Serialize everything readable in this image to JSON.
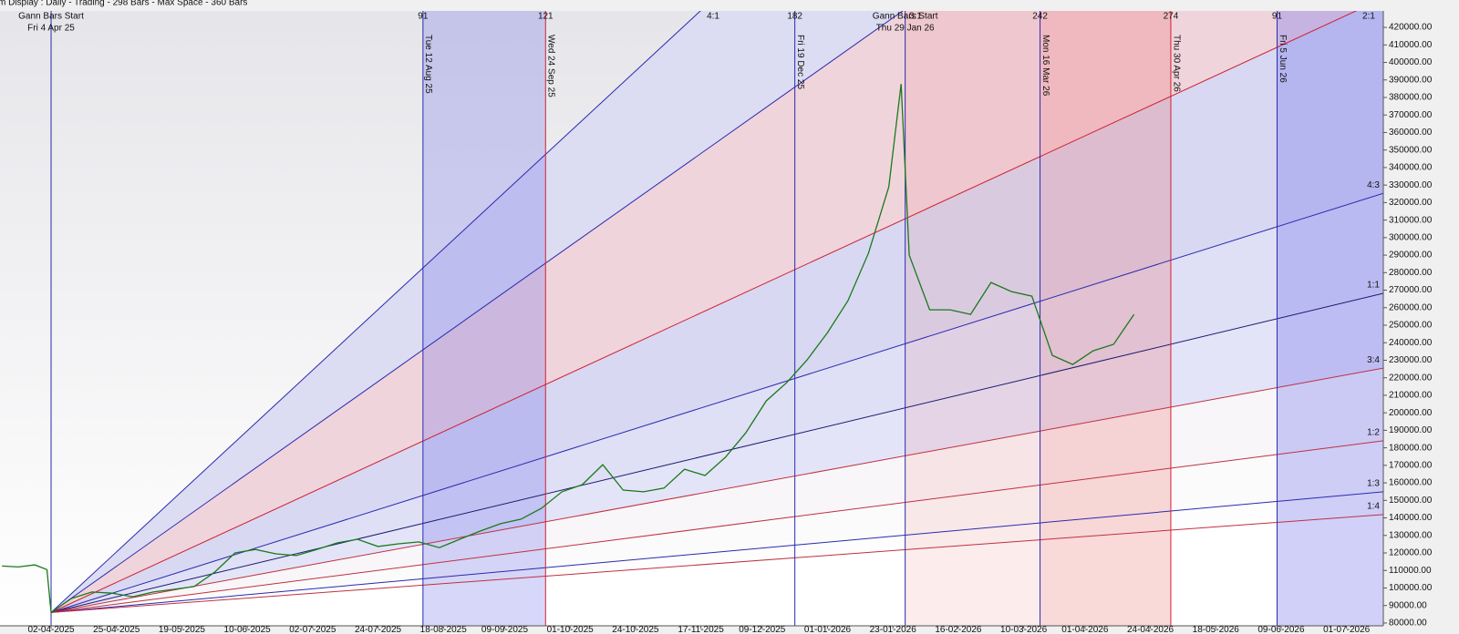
{
  "chart_data": {
    "type": "gann",
    "header": "m Display : Daily - Trading - 298 Bars - Max Space - 360 Bars",
    "xlim": [
      -12.5,
      326
    ],
    "ylim": [
      78400,
      429400
    ],
    "xticks": [
      {
        "value": 0,
        "label": "02-04-2025"
      },
      {
        "value": 16,
        "label": "25-04-2025"
      },
      {
        "value": 32,
        "label": "19-05-2025"
      },
      {
        "value": 48,
        "label": "10-06-2025"
      },
      {
        "value": 64,
        "label": "02-07-2025"
      },
      {
        "value": 80,
        "label": "24-07-2025"
      },
      {
        "value": 96,
        "label": "18-08-2025"
      },
      {
        "value": 111,
        "label": "09-09-2025"
      },
      {
        "value": 127,
        "label": "01-10-2025"
      },
      {
        "value": 143,
        "label": "24-10-2025"
      },
      {
        "value": 159,
        "label": "17-11-2025"
      },
      {
        "value": 174,
        "label": "09-12-2025"
      },
      {
        "value": 190,
        "label": "01-01-2026"
      },
      {
        "value": 206,
        "label": "23-01-2026"
      },
      {
        "value": 222,
        "label": "16-02-2026"
      },
      {
        "value": 238,
        "label": "10-03-2026"
      },
      {
        "value": 253,
        "label": "01-04-2026"
      },
      {
        "value": 269,
        "label": "24-04-2026"
      },
      {
        "value": 285,
        "label": "18-05-2026"
      },
      {
        "value": 301,
        "label": "09-06-2026"
      },
      {
        "value": 317,
        "label": "01-07-2026"
      }
    ],
    "yticks": [
      {
        "value": 80000,
        "label": "80000.00"
      },
      {
        "value": 90000,
        "label": "90000.00"
      },
      {
        "value": 100000,
        "label": "100000.00"
      },
      {
        "value": 110000,
        "label": "110000.00"
      },
      {
        "value": 120000,
        "label": "120000.00"
      },
      {
        "value": 130000,
        "label": "130000.00"
      },
      {
        "value": 140000,
        "label": "140000.00"
      },
      {
        "value": 150000,
        "label": "150000.00"
      },
      {
        "value": 160000,
        "label": "160000.00"
      },
      {
        "value": 170000,
        "label": "170000.00"
      },
      {
        "value": 180000,
        "label": "180000.00"
      },
      {
        "value": 190000,
        "label": "190000.00"
      },
      {
        "value": 200000,
        "label": "200000.00"
      },
      {
        "value": 210000,
        "label": "210000.00"
      },
      {
        "value": 220000,
        "label": "220000.00"
      },
      {
        "value": 230000,
        "label": "230000.00"
      },
      {
        "value": 240000,
        "label": "240000.00"
      },
      {
        "value": 250000,
        "label": "250000.00"
      },
      {
        "value": 260000,
        "label": "260000.00"
      },
      {
        "value": 270000,
        "label": "270000.00"
      },
      {
        "value": 280000,
        "label": "280000.00"
      },
      {
        "value": 290000,
        "label": "290000.00"
      },
      {
        "value": 300000,
        "label": "300000.00"
      },
      {
        "value": 310000,
        "label": "310000.00"
      },
      {
        "value": 320000,
        "label": "320000.00"
      },
      {
        "value": 330000,
        "label": "330000.00"
      },
      {
        "value": 340000,
        "label": "340000.00"
      },
      {
        "value": 350000,
        "label": "350000.00"
      },
      {
        "value": 360000,
        "label": "360000.00"
      },
      {
        "value": 370000,
        "label": "370000.00"
      },
      {
        "value": 380000,
        "label": "380000.00"
      },
      {
        "value": 390000,
        "label": "390000.00"
      },
      {
        "value": 400000,
        "label": "400000.00"
      },
      {
        "value": 410000,
        "label": "410000.00"
      },
      {
        "value": 420000,
        "label": "420000.00"
      }
    ],
    "origin": {
      "x": 0,
      "value": 86000
    },
    "fans": [
      {
        "name": "4:1",
        "color": "#2a2ab0",
        "fill": "#dcdcf2",
        "end": 790600
      },
      {
        "name": "3:1",
        "color": "#2a2ab0",
        "fill": "#f0d4dc",
        "end": 623200
      },
      {
        "name": "2:1",
        "color": "#d02030",
        "fill": "#d8d8f2",
        "end": 436600
      },
      {
        "name": "4:3",
        "color": "#2a2ab0",
        "fill": "#dfdff6",
        "end": 325300
      },
      {
        "name": "1:1",
        "color": "#1a1a70",
        "fill": "#e4e4f8",
        "end": 268200
      },
      {
        "name": "3:4",
        "color": "#c03040",
        "fill": "#f8f6f8",
        "end": 225500
      },
      {
        "name": "1:2",
        "color": "#c03040",
        "fill": "#fbfbfb",
        "end": 184000
      },
      {
        "name": "1:3",
        "color": "#2a2ab0",
        "fill": "#fdfdfd",
        "end": 154900
      },
      {
        "name": "1:4",
        "color": "#c03040",
        "fill": "#ffffff",
        "end": 141900
      }
    ],
    "bands": [
      {
        "from": 91,
        "to": 121,
        "color": "rgba(110,110,235,0.28)"
      },
      {
        "from": 209,
        "to": 242,
        "color": "rgba(235,120,120,0.14)"
      },
      {
        "from": 242,
        "to": 274,
        "color": "rgba(235,110,110,0.26)"
      },
      {
        "from": 300,
        "to": 326,
        "color": "rgba(110,110,235,0.32)"
      }
    ],
    "markers": [
      {
        "x": 0,
        "color": "#2a2ab0",
        "title": "Gann Bars Start",
        "date": "Fri 4 Apr 25"
      },
      {
        "x": 91,
        "color": "#2a2ab0",
        "label": "91",
        "date": "Tue 12 Aug 25"
      },
      {
        "x": 121,
        "color": "#d02030",
        "label": "121",
        "date": "Wed 24 Sep 25"
      },
      {
        "x": 182,
        "color": "#2a2ab0",
        "label": "182",
        "date": "Fri 19 Dec 25"
      },
      {
        "x": 209,
        "color": "#2a2ab0",
        "title": "Gann Bars Start",
        "date": "Thu 29 Jan 26"
      },
      {
        "x": 242,
        "color": "#2a2ab0",
        "label": "242",
        "date": "Mon 16 Mar 26"
      },
      {
        "x": 274,
        "color": "#d02030",
        "label": "274",
        "date": "Thu 30 Apr 26"
      },
      {
        "x": 300,
        "color": "#2a2ab0",
        "label": "91",
        "date": "Fri 5 Jun 26"
      }
    ],
    "price": {
      "color": "#1a7a1a",
      "x": [
        -12,
        -8,
        -4,
        -1,
        0,
        5,
        10,
        15,
        20,
        25,
        30,
        35,
        40,
        45,
        50,
        55,
        60,
        65,
        70,
        75,
        80,
        85,
        90,
        95,
        100,
        105,
        110,
        115,
        120,
        125,
        130,
        135,
        140,
        145,
        150,
        155,
        160,
        165,
        170,
        175,
        180,
        185,
        190,
        195,
        200,
        205,
        208,
        210,
        215,
        220,
        225,
        230,
        235,
        240,
        245,
        250,
        255,
        260,
        265
      ],
      "values": [
        112500,
        112000,
        113200,
        110500,
        86000,
        94000,
        97700,
        97000,
        95000,
        97700,
        99200,
        100800,
        109000,
        120000,
        122000,
        119500,
        118500,
        122000,
        125700,
        127800,
        123700,
        125200,
        126300,
        123000,
        127800,
        132500,
        136700,
        139300,
        145500,
        154900,
        159000,
        170400,
        155900,
        154900,
        157000,
        167800,
        164200,
        174600,
        188600,
        206800,
        217200,
        230200,
        245800,
        264000,
        291000,
        329000,
        387700,
        290000,
        258800,
        258800,
        256200,
        274400,
        269200,
        266600,
        232800,
        227600,
        235400,
        239100,
        256200
      ]
    }
  }
}
